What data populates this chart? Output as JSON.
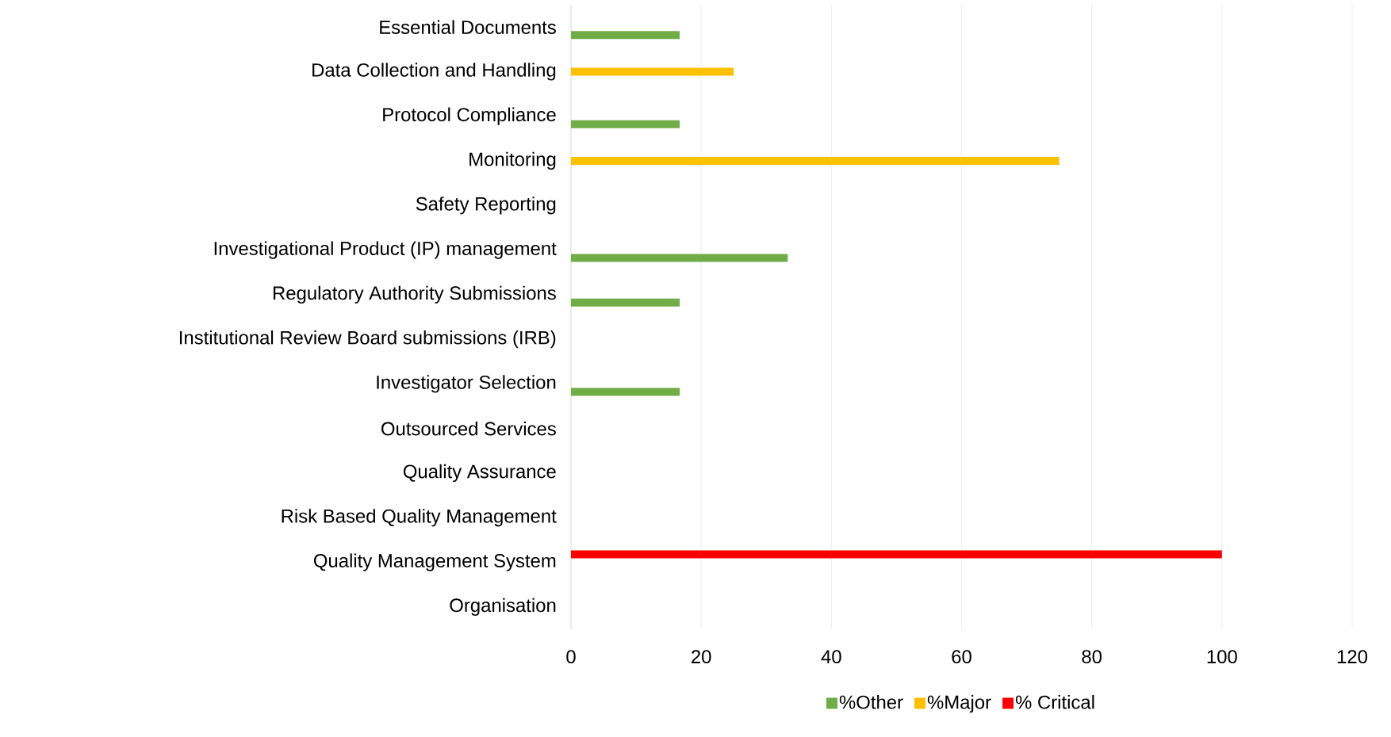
{
  "chart_data": {
    "type": "bar",
    "orientation": "horizontal",
    "categories": [
      "Essential Documents",
      "Data Collection and Handling",
      "Protocol Compliance",
      "Monitoring",
      "Safety Reporting",
      "Investigational Product (IP) management",
      "Regulatory Authority Submissions",
      "Institutional Review Board submissions (IRB)",
      "Investigator Selection",
      "Outsourced Services",
      "Quality Assurance",
      "Risk Based Quality Management",
      "Quality Management System",
      "Organisation"
    ],
    "series": [
      {
        "name": "%Other",
        "color": "#70ad47",
        "values": [
          16.7,
          0,
          16.7,
          0,
          0,
          33.3,
          16.7,
          0,
          16.7,
          0,
          0,
          0,
          0,
          0
        ]
      },
      {
        "name": "%Major",
        "color": "#ffc000",
        "values": [
          0,
          25,
          0,
          75,
          0,
          0,
          0,
          0,
          0,
          0,
          0,
          0,
          0,
          0
        ]
      },
      {
        "name": "% Critical",
        "color": "#ff0000",
        "values": [
          0,
          0,
          0,
          0,
          0,
          0,
          0,
          0,
          0,
          0,
          0,
          0,
          100,
          0
        ]
      }
    ],
    "xlim": [
      0,
      120
    ],
    "xticks": [
      0,
      20,
      40,
      60,
      80,
      100,
      120
    ],
    "grid": "x",
    "legend": "bottom"
  }
}
